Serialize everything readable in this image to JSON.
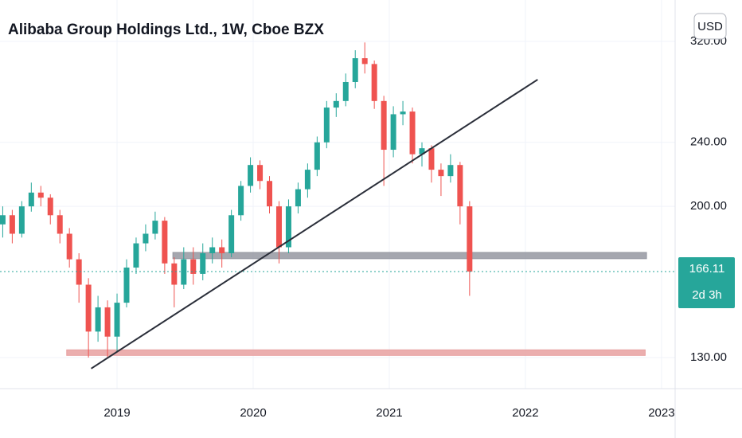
{
  "chart_data": {
    "type": "candlestick",
    "title": "Alibaba Group Holdings Ltd., 1W, Cboe BZX",
    "currency": "USD",
    "log_scale": true,
    "grid": true,
    "up_color": "#26a69a",
    "down_color": "#ef5350",
    "x": [
      2018.16,
      2018.23,
      2018.3,
      2018.37,
      2018.44,
      2018.51,
      2018.58,
      2018.65,
      2018.72,
      2018.79,
      2018.86,
      2018.93,
      2019.0,
      2019.07,
      2019.14,
      2019.21,
      2019.28,
      2019.35,
      2019.42,
      2019.49,
      2019.56,
      2019.63,
      2019.7,
      2019.77,
      2019.84,
      2019.91,
      2019.98,
      2020.05,
      2020.12,
      2020.19,
      2020.26,
      2020.33,
      2020.4,
      2020.47,
      2020.54,
      2020.61,
      2020.68,
      2020.75,
      2020.82,
      2020.89,
      2020.96,
      2021.03,
      2021.1,
      2021.17,
      2021.24,
      2021.31,
      2021.38,
      2021.45,
      2021.52,
      2021.59
    ],
    "open": [
      190,
      195,
      185,
      200,
      208,
      205,
      195,
      185,
      172,
      160,
      140,
      150,
      138,
      152,
      168,
      180,
      185,
      192,
      170,
      160,
      172,
      165,
      175,
      178,
      175,
      195,
      212,
      225,
      215,
      200,
      178,
      200,
      210,
      222,
      240,
      265,
      270,
      285,
      305,
      300,
      270,
      235,
      260,
      262,
      232,
      236,
      222,
      218,
      225,
      200
    ],
    "high": [
      200,
      198,
      203,
      214,
      212,
      207,
      198,
      188,
      175,
      163,
      155,
      153,
      156,
      172,
      183,
      190,
      197,
      194,
      173,
      178,
      178,
      180,
      183,
      182,
      198,
      215,
      230,
      228,
      218,
      203,
      204,
      214,
      226,
      244,
      270,
      276,
      292,
      312,
      319,
      303,
      274,
      266,
      270,
      265,
      240,
      238,
      226,
      232,
      227,
      203
    ],
    "low": [
      183,
      180,
      183,
      197,
      200,
      190,
      180,
      168,
      152,
      130,
      136,
      130,
      132,
      150,
      165,
      176,
      182,
      165,
      150,
      158,
      160,
      162,
      170,
      168,
      173,
      192,
      208,
      210,
      196,
      170,
      175,
      196,
      205,
      218,
      236,
      258,
      266,
      280,
      292,
      264,
      212,
      230,
      252,
      226,
      224,
      214,
      206,
      214,
      190,
      155
    ],
    "close": [
      195,
      185,
      200,
      208,
      205,
      195,
      185,
      172,
      160,
      140,
      150,
      138,
      152,
      168,
      180,
      185,
      192,
      170,
      160,
      172,
      165,
      175,
      178,
      175,
      195,
      212,
      225,
      215,
      200,
      178,
      200,
      210,
      222,
      240,
      265,
      270,
      285,
      305,
      300,
      270,
      235,
      260,
      262,
      232,
      236,
      222,
      218,
      225,
      200,
      166.11
    ],
    "xlim": [
      2018.14,
      2023.1
    ],
    "xticks": [
      2019,
      2020,
      2021,
      2022,
      2023
    ],
    "ylim": [
      119,
      360
    ],
    "yticks": [
      {
        "value": 130,
        "label": "130.00"
      },
      {
        "value": 200,
        "label": "200.00"
      },
      {
        "value": 240,
        "label": "240.00"
      },
      {
        "value": 320,
        "label": "320.00"
      }
    ],
    "last_price": 166.11,
    "countdown": "2d 3h",
    "trend_line": {
      "x": [
        2018.81,
        2022.09
      ],
      "y": [
        126,
        287
      ],
      "color": "#2a2e39"
    },
    "zones": [
      {
        "x": [
          2019.41,
          2022.89
        ],
        "y": [
          172.3,
          175.4
        ],
        "color": "#9598a1"
      },
      {
        "x": [
          2018.63,
          2022.88
        ],
        "y": [
          130.8,
          132.9
        ],
        "color": "#e8a0a0"
      }
    ]
  }
}
